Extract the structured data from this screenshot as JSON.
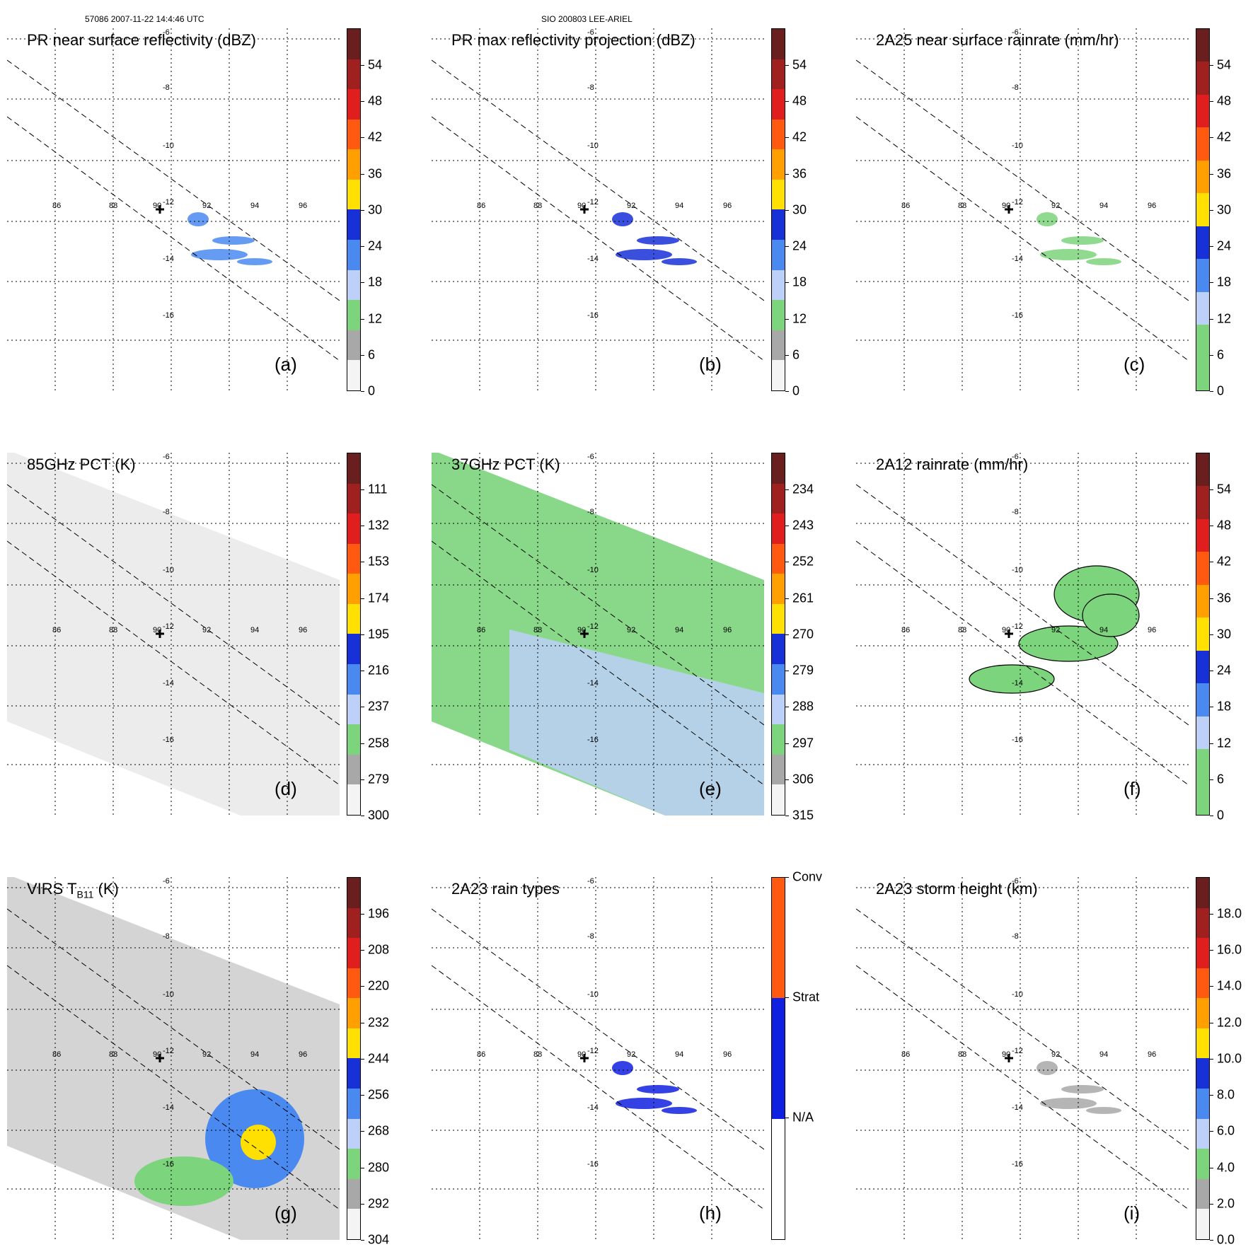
{
  "header": {
    "left": "57086 2007-11-22 14:4:46 UTC",
    "center": "SIO 200803 LEE-ARIEL"
  },
  "grid": {
    "lons": [
      "86",
      "88",
      "90",
      "92",
      "94",
      "96"
    ],
    "lats": [
      "-6",
      "-8",
      "-10",
      "-12",
      "-14",
      "-16"
    ]
  },
  "chart_data": [
    {
      "type": "heatmap",
      "id": "a",
      "label": "(a)",
      "title": "PR near surface reflectivity (dBZ)",
      "colorbar_ticks": [
        "54",
        "48",
        "42",
        "36",
        "30",
        "24",
        "18",
        "12",
        "6",
        "0"
      ],
      "colors": [
        "#6a1f1f",
        "#a02020",
        "#e01e1e",
        "#ff5a10",
        "#ffa000",
        "#ffe000",
        "#1830d8",
        "#4a8af0",
        "#bcd0f8",
        "#7cd47c",
        "#a8a8a8",
        "#f4f4f4"
      ]
    },
    {
      "type": "heatmap",
      "id": "b",
      "label": "(b)",
      "title": "PR max reflectivity projection (dBZ)",
      "colorbar_ticks": [
        "54",
        "48",
        "42",
        "36",
        "30",
        "24",
        "18",
        "12",
        "6",
        "0"
      ],
      "colors": [
        "#6a1f1f",
        "#a02020",
        "#e01e1e",
        "#ff5a10",
        "#ffa000",
        "#ffe000",
        "#1830d8",
        "#4a8af0",
        "#bcd0f8",
        "#7cd47c",
        "#a8a8a8",
        "#f4f4f4"
      ]
    },
    {
      "type": "heatmap",
      "id": "c",
      "label": "(c)",
      "title": "2A25 near surface rainrate (mm/hr)",
      "colorbar_ticks": [
        "54",
        "48",
        "42",
        "36",
        "30",
        "24",
        "18",
        "12",
        "6",
        "0"
      ],
      "colors": [
        "#6a1f1f",
        "#a02020",
        "#e01e1e",
        "#ff5a10",
        "#ffa000",
        "#ffe000",
        "#1830d8",
        "#4a8af0",
        "#bcd0f8",
        "#7cd47c",
        "#7cd47c"
      ]
    },
    {
      "type": "heatmap",
      "id": "d",
      "label": "(d)",
      "title": "85GHz PCT (K)",
      "colorbar_ticks": [
        "111",
        "132",
        "153",
        "174",
        "195",
        "216",
        "237",
        "258",
        "279",
        "300"
      ],
      "colors": [
        "#6a1f1f",
        "#a02020",
        "#e01e1e",
        "#ff5a10",
        "#ffa000",
        "#ffe000",
        "#1830d8",
        "#4a8af0",
        "#bcd0f8",
        "#7cd47c",
        "#a8a8a8",
        "#f4f4f4"
      ]
    },
    {
      "type": "heatmap",
      "id": "e",
      "label": "(e)",
      "title": "37GHz PCT (K)",
      "colorbar_ticks": [
        "234",
        "243",
        "252",
        "261",
        "270",
        "279",
        "288",
        "297",
        "306",
        "315"
      ],
      "colors": [
        "#6a1f1f",
        "#a02020",
        "#e01e1e",
        "#ff5a10",
        "#ffa000",
        "#ffe000",
        "#1830d8",
        "#4a8af0",
        "#bcd0f8",
        "#7cd47c",
        "#a8a8a8",
        "#f4f4f4"
      ]
    },
    {
      "type": "heatmap",
      "id": "f",
      "label": "(f)",
      "title": "2A12 rainrate (mm/hr)",
      "colorbar_ticks": [
        "54",
        "48",
        "42",
        "36",
        "30",
        "24",
        "18",
        "12",
        "6",
        "0"
      ],
      "colors": [
        "#6a1f1f",
        "#a02020",
        "#e01e1e",
        "#ff5a10",
        "#ffa000",
        "#ffe000",
        "#1830d8",
        "#4a8af0",
        "#bcd0f8",
        "#7cd47c",
        "#7cd47c"
      ]
    },
    {
      "type": "heatmap",
      "id": "g",
      "label": "(g)",
      "title": "VIRS T",
      "title_sub": "B11",
      "title_unit": " (K)",
      "colorbar_ticks": [
        "196",
        "208",
        "220",
        "232",
        "244",
        "256",
        "268",
        "280",
        "292",
        "304"
      ],
      "colors": [
        "#6a1f1f",
        "#a02020",
        "#e01e1e",
        "#ff5a10",
        "#ffa000",
        "#ffe000",
        "#1830d8",
        "#4a8af0",
        "#bcd0f8",
        "#7cd47c",
        "#a8a8a8",
        "#f4f4f4"
      ]
    },
    {
      "type": "heatmap",
      "id": "h",
      "label": "(h)",
      "title": "2A23 rain types",
      "colorbar_ticks": [
        "Conv",
        "Strat",
        "N/A"
      ],
      "colors": [
        "#ff5a10",
        "#1020e0",
        "#ffffff"
      ]
    },
    {
      "type": "heatmap",
      "id": "i",
      "label": "(i)",
      "title": "2A23 storm height (km)",
      "colorbar_ticks": [
        "18.0",
        "16.0",
        "14.0",
        "12.0",
        "10.0",
        "8.0",
        "6.0",
        "4.0",
        "2.0",
        "0.0"
      ],
      "colors": [
        "#6a1f1f",
        "#a02020",
        "#e01e1e",
        "#ff5a10",
        "#ffa000",
        "#ffe000",
        "#1830d8",
        "#4a8af0",
        "#bcd0f8",
        "#7cd47c",
        "#a8a8a8",
        "#f4f4f4"
      ]
    }
  ]
}
